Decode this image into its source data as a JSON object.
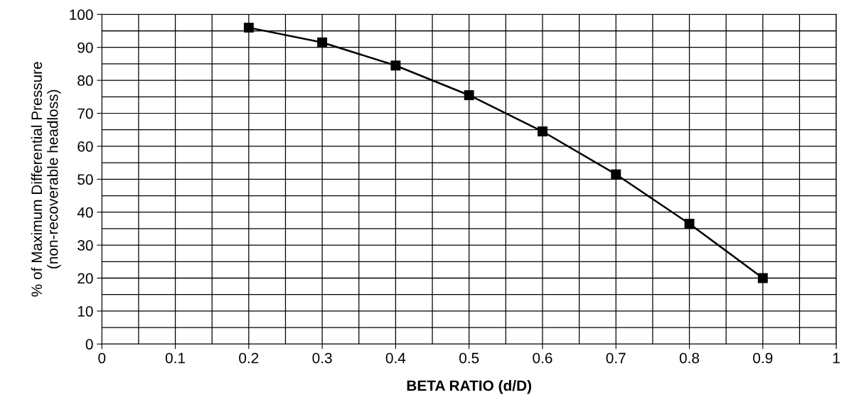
{
  "chart_data": {
    "type": "line",
    "xlabel": "BETA RATIO (d/D)",
    "ylabel": "% of Maximum Differential Pressure\n(non-recoverable headloss)",
    "x": [
      0.2,
      0.3,
      0.4,
      0.5,
      0.6,
      0.7,
      0.8,
      0.9
    ],
    "series": [
      {
        "color": "#000000",
        "values": [
          96,
          91.5,
          84.5,
          75.5,
          64.5,
          51.5,
          36.5,
          20
        ]
      }
    ],
    "xlim": [
      0,
      1
    ],
    "ylim": [
      0,
      100
    ],
    "xticks": [
      0,
      {
        "value": 0.05,
        "label": null
      },
      0.1,
      {
        "value": 0.15,
        "label": null
      },
      0.2,
      {
        "value": 0.25,
        "label": null
      },
      0.3,
      {
        "value": 0.35,
        "label": null
      },
      0.4,
      {
        "value": 0.45,
        "label": null
      },
      0.5,
      {
        "value": 0.55,
        "label": null
      },
      0.6,
      {
        "value": 0.65,
        "label": null
      },
      0.7,
      {
        "value": 0.75,
        "label": null
      },
      0.8,
      {
        "value": 0.85,
        "label": null
      },
      0.9,
      {
        "value": 0.95,
        "label": null
      },
      1
    ],
    "yticks": [
      0,
      {
        "value": 5,
        "label": null
      },
      10,
      {
        "value": 15,
        "label": null
      },
      20,
      {
        "value": 25,
        "label": null
      },
      30,
      {
        "value": 35,
        "label": null
      },
      40,
      {
        "value": 45,
        "label": null
      },
      50,
      {
        "value": 55,
        "label": null
      },
      60,
      {
        "value": 65,
        "label": null
      },
      70,
      {
        "value": 75,
        "label": null
      },
      80,
      {
        "value": 85,
        "label": null
      },
      90,
      {
        "value": 95,
        "label": null
      },
      100
    ],
    "grid": true,
    "marker": "square",
    "line_style": "solid"
  }
}
